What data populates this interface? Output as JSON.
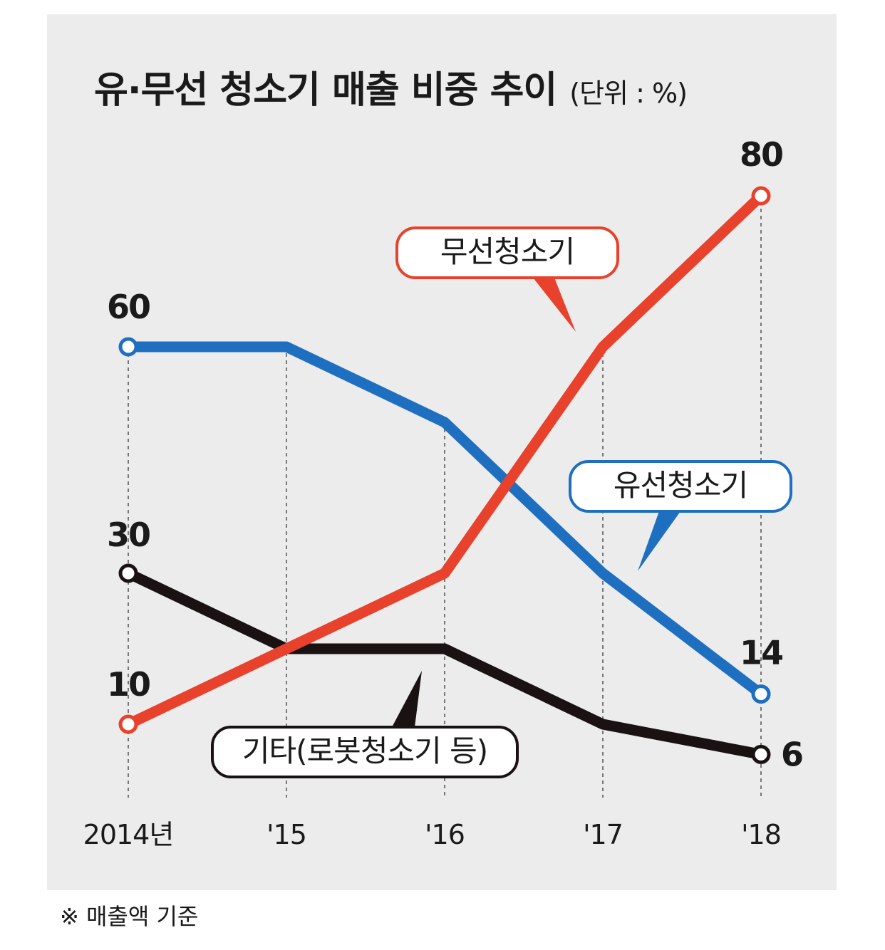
{
  "title": "유·무선 청소기 매출 비중 추이",
  "unit": "(단위 : %)",
  "footnote": "※ 매출액 기준",
  "chart_data": {
    "type": "line",
    "title": "유·무선 청소기 매출 비중 추이",
    "unit": "(단위 : %)",
    "categories": [
      "2014년",
      "'15",
      "'16",
      "'17",
      "'18"
    ],
    "ylim": [
      0,
      90
    ],
    "grid": "vertical dashed lines at each year",
    "series": [
      {
        "name": "유선청소기",
        "color": "#1f6fc0",
        "values": [
          60,
          60,
          50,
          30,
          14
        ]
      },
      {
        "name": "무선청소기",
        "color": "#e8412c",
        "values": [
          10,
          20,
          30,
          60,
          80
        ]
      },
      {
        "name": "기타(로봇청소기 등)",
        "color": "#1a1212",
        "values": [
          30,
          20,
          20,
          10,
          6
        ]
      }
    ],
    "value_labels": {
      "유선청소기": {
        "2014년": "60",
        "'18": "14"
      },
      "무선청소기": {
        "2014년": "10",
        "'18": "80"
      },
      "기타(로봇청소기 등)": {
        "2014년": "30",
        "'18": "6"
      }
    }
  }
}
